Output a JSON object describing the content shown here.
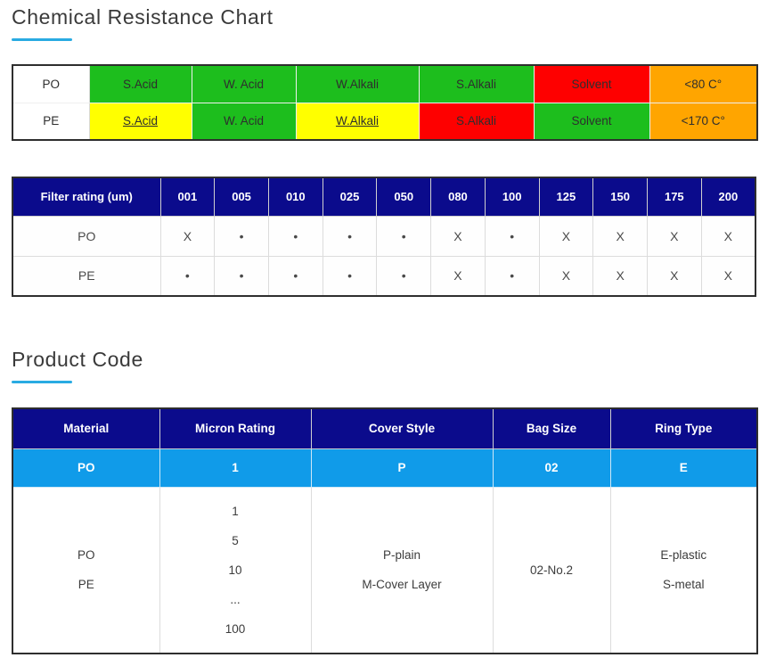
{
  "colors": {
    "green": "#1dbe1d",
    "yellow": "#ffff00",
    "red": "#fe0000",
    "orange": "#ffa500",
    "navy": "#0b0b8c",
    "light_blue": "#109be9",
    "accent_underline": "#29abe2"
  },
  "chemical": {
    "title": "Chemical Resistance Chart",
    "rows": [
      {
        "label": "PO",
        "cells": [
          {
            "text": "S.Acid",
            "color": "green",
            "underline": false
          },
          {
            "text": "W. Acid",
            "color": "green",
            "underline": false
          },
          {
            "text": "W.Alkali",
            "color": "green",
            "underline": false
          },
          {
            "text": "S.Alkali",
            "color": "green",
            "underline": false
          },
          {
            "text": "Solvent",
            "color": "red",
            "underline": false
          },
          {
            "text": "<80 C°",
            "color": "orange",
            "underline": false
          }
        ]
      },
      {
        "label": "PE",
        "cells": [
          {
            "text": "S.Acid",
            "color": "yellow",
            "underline": true
          },
          {
            "text": "W. Acid",
            "color": "green",
            "underline": false
          },
          {
            "text": "W.Alkali",
            "color": "yellow",
            "underline": true
          },
          {
            "text": "S.Alkali",
            "color": "red",
            "underline": false
          },
          {
            "text": "Solvent",
            "color": "green",
            "underline": false
          },
          {
            "text": "<170 C°",
            "color": "orange",
            "underline": false
          }
        ]
      }
    ]
  },
  "filter": {
    "header_label": "Filter rating (um)",
    "columns": [
      "001",
      "005",
      "010",
      "025",
      "050",
      "080",
      "100",
      "125",
      "150",
      "175",
      "200"
    ],
    "rows": [
      {
        "label": "PO",
        "values": [
          "X",
          "•",
          "•",
          "•",
          "•",
          "X",
          "•",
          "X",
          "X",
          "X",
          "X"
        ]
      },
      {
        "label": "PE",
        "values": [
          "•",
          "•",
          "•",
          "•",
          "•",
          "X",
          "•",
          "X",
          "X",
          "X",
          "X"
        ]
      }
    ]
  },
  "product": {
    "title": "Product Code",
    "headers": [
      "Material",
      "Micron Rating",
      "Cover Style",
      "Bag Size",
      "Ring Type"
    ],
    "code_row": [
      "PO",
      "1",
      "P",
      "02",
      "E"
    ],
    "detail_row": [
      [
        "PO",
        "PE"
      ],
      [
        "1",
        "5",
        "10",
        "...",
        "100"
      ],
      [
        "P-plain",
        "M-Cover Layer"
      ],
      [
        "02-No.2"
      ],
      [
        "E-plastic",
        "S-metal"
      ]
    ]
  }
}
